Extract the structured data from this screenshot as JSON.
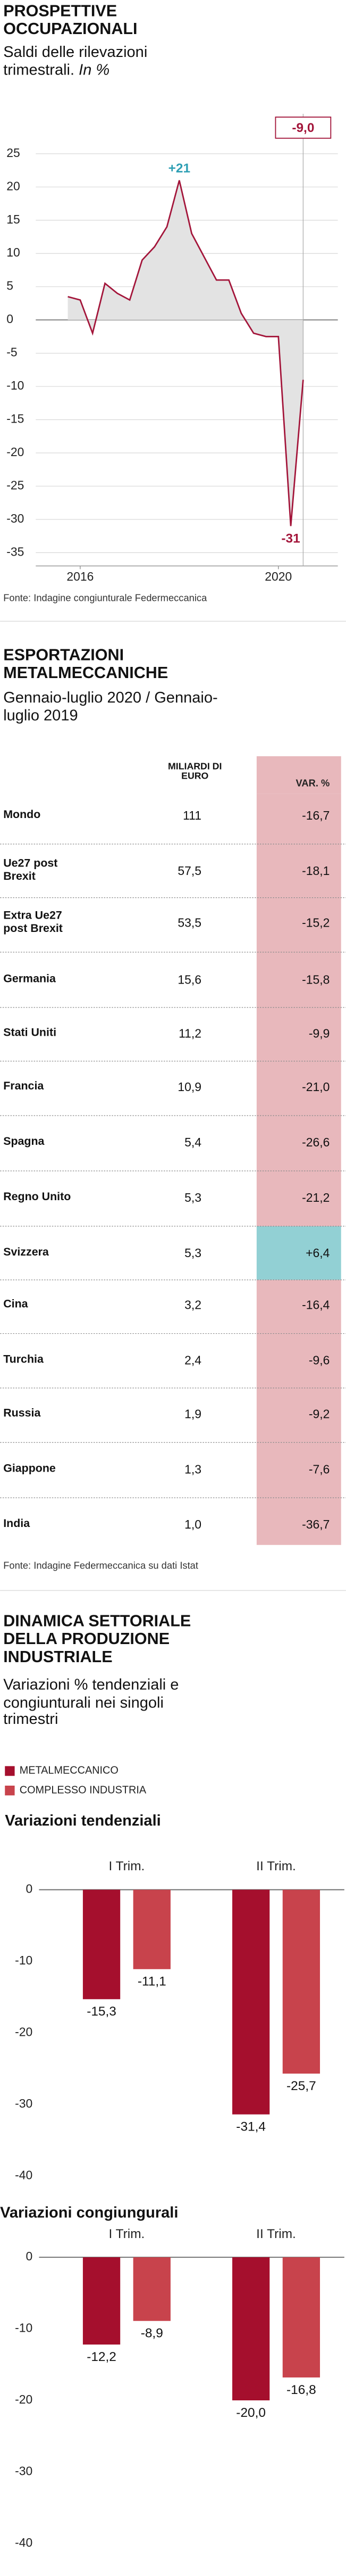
{
  "chart_data": [
    {
      "type": "line",
      "title": "PROSPETTIVE OCCUPAZIONALI",
      "subtitle": "Saldi delle rilevazioni trimestrali.",
      "unit": "In %",
      "x": [
        2015.75,
        2016,
        2016.25,
        2016.5,
        2016.75,
        2017,
        2017.25,
        2017.5,
        2017.75,
        2018,
        2018.25,
        2018.5,
        2018.75,
        2019,
        2019.25,
        2019.5,
        2019.75,
        2020,
        2020.25,
        2020.5
      ],
      "values": [
        3.5,
        3,
        -2,
        5.5,
        4,
        3,
        9,
        11,
        14,
        21,
        13,
        9.5,
        6,
        6,
        1,
        -2,
        -2.5,
        -2.5,
        -31,
        -9
      ],
      "value_labels": [
        null,
        null,
        null,
        null,
        null,
        null,
        null,
        null,
        null,
        "+21",
        null,
        null,
        null,
        null,
        null,
        null,
        null,
        null,
        "-31",
        "-9,0"
      ],
      "color": "#a3153a",
      "area_color": "#e3e3e3",
      "label_colors": {
        "positive": "#2e9fb4",
        "negative": "#a3153a"
      },
      "xlim": [
        2015.3,
        2021.2
      ],
      "xticks": [
        2016,
        2020
      ],
      "ylim": [
        -37,
        31
      ],
      "yticks": [
        25,
        20,
        15,
        10,
        5,
        0,
        -5,
        -10,
        -15,
        -20,
        -25,
        -30,
        -35
      ],
      "grid": true,
      "source": "Fonte: Indagine congiunturale Federmeccanica"
    },
    {
      "type": "bar",
      "title": "DINAMICA SETTORIALE DELLA PRODUZIONE INDUSTRIALE",
      "subtitle": "Variazioni % tendenziali e congiunturali nei singoli trimestri",
      "categories": [
        "I Trim.",
        "II Trim."
      ],
      "series": [
        {
          "name": "METALMECCANICO",
          "color": "#a50f2d"
        },
        {
          "name": "COMPLESSO INDUSTRIA",
          "color": "#c8434c"
        }
      ],
      "ylim": [
        -40,
        0
      ],
      "yticks": [
        0,
        -10,
        -20,
        -30,
        -40
      ],
      "panels": [
        {
          "title": "Variazioni tendenziali",
          "series": [
            {
              "values": [
                -15.3,
                -31.4
              ],
              "value_labels": [
                "-15,3",
                "-31,4"
              ]
            },
            {
              "values": [
                -11.1,
                -25.7
              ],
              "value_labels": [
                "-11,1",
                "-25,7"
              ]
            }
          ]
        },
        {
          "title": "Variazioni congiungurali",
          "series": [
            {
              "values": [
                -12.2,
                -20.0
              ],
              "value_labels": [
                "-12,2",
                "-20,0"
              ]
            },
            {
              "values": [
                -8.9,
                -16.8
              ],
              "value_labels": [
                "-8,9",
                "-16,8"
              ]
            }
          ]
        }
      ]
    }
  ],
  "table": {
    "title": "ESPORTAZIONI METALMECCANICHE",
    "subtitle": "Gennaio-luglio 2020 / Gennaio-luglio 2019",
    "headers": [
      "MILIARDI DI EURO",
      "VAR. %"
    ],
    "rows": [
      [
        "Mondo",
        "111",
        "-16,7"
      ],
      [
        "Ue27 post Brexit",
        "57,5",
        "-18,1"
      ],
      [
        "Extra Ue27 post Brexit",
        "53,5",
        "-15,2"
      ],
      [
        "Germania",
        "15,6",
        "-15,8"
      ],
      [
        "Stati Uniti",
        "11,2",
        "-9,9"
      ],
      [
        "Francia",
        "10,9",
        "-21,0"
      ],
      [
        "Spagna",
        "5,4",
        "-26,6"
      ],
      [
        "Regno Unito",
        "5,3",
        "-21,2"
      ],
      [
        "Svizzera",
        "5,3",
        "+6,4"
      ],
      [
        "Cina",
        "3,2",
        "-16,4"
      ],
      [
        "Turchia",
        "2,4",
        "-9,6"
      ],
      [
        "Russia",
        "1,9",
        "-9,2"
      ],
      [
        "Giappone",
        "1,3",
        "-7,6"
      ],
      [
        "India",
        "1,0",
        "-36,7"
      ]
    ],
    "colors": {
      "negative": "#e8b8bc",
      "positive": "#92d0d4"
    },
    "source": "Fonte: Indagine Federmeccanica su dati Istat"
  }
}
